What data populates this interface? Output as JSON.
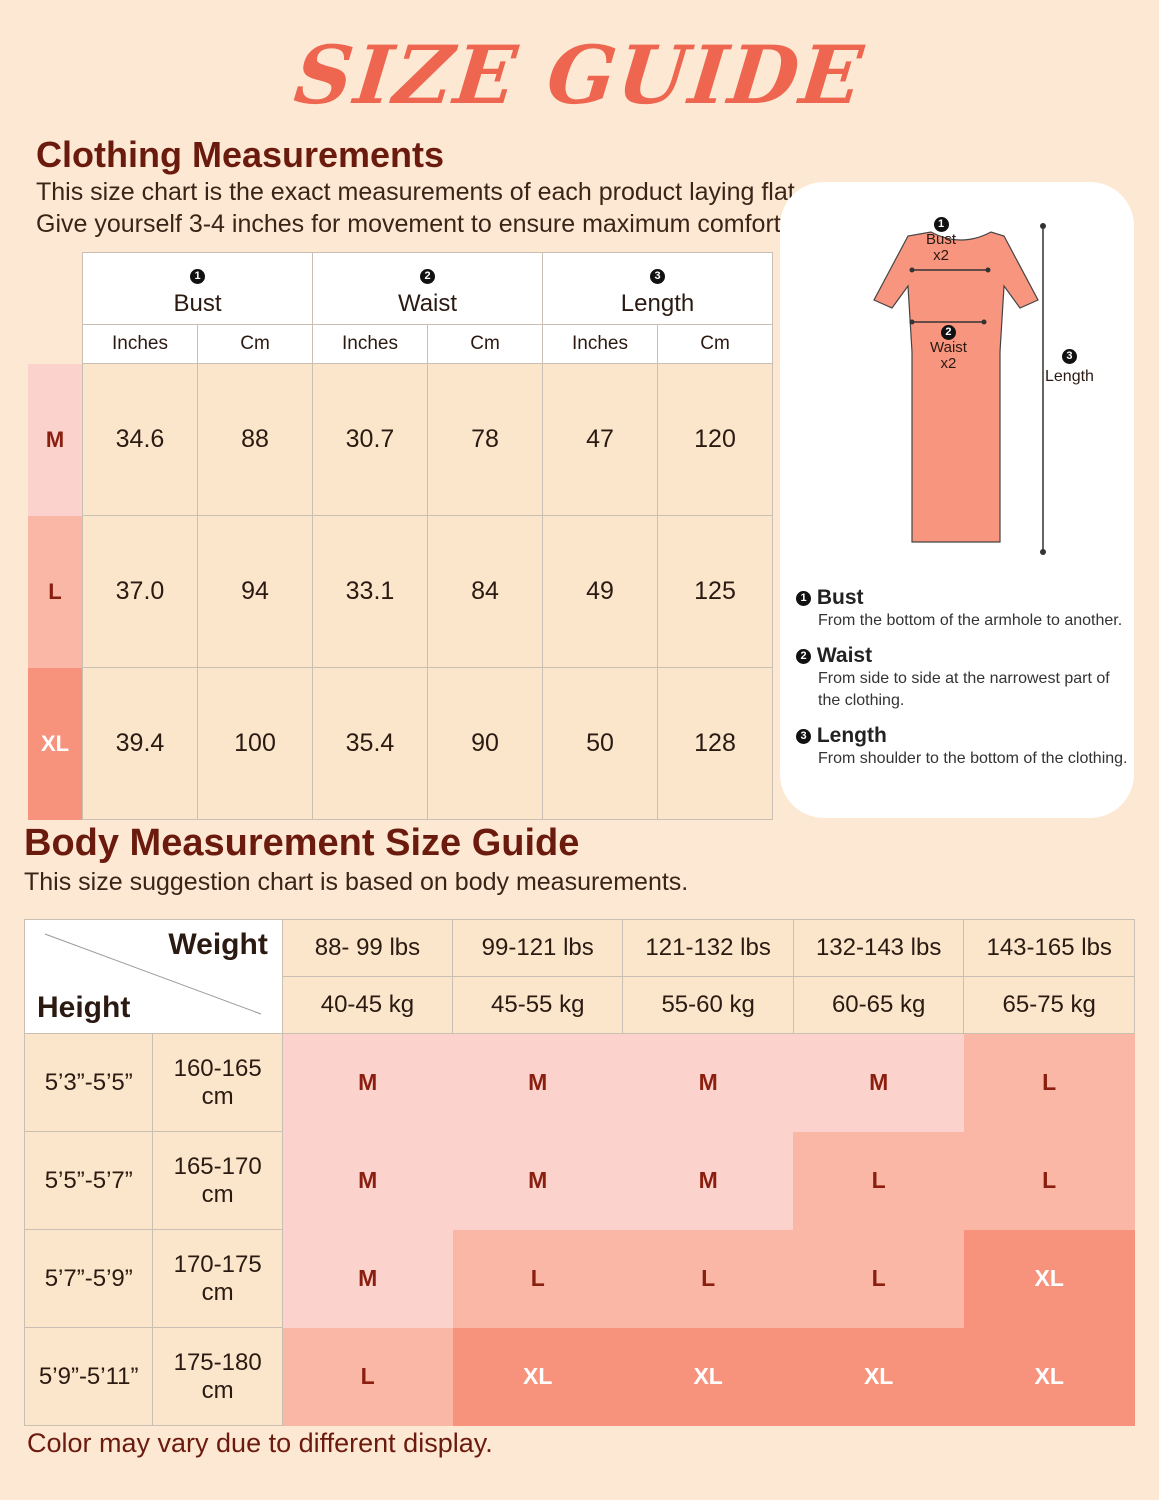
{
  "title": "SIZE GUIDE",
  "clothing": {
    "heading": "Clothing Measurements",
    "desc1": "This size chart is the exact measurements of each product laying flat.",
    "desc2": "Give yourself 3-4 inches for movement to ensure maximum comfort.",
    "columns": [
      {
        "num": "1",
        "label": "Bust"
      },
      {
        "num": "2",
        "label": "Waist"
      },
      {
        "num": "3",
        "label": "Length"
      }
    ],
    "unit_inches": "Inches",
    "unit_cm": "Cm",
    "rows": [
      {
        "size": "M",
        "values": [
          "34.6",
          "88",
          "30.7",
          "78",
          "47",
          "120"
        ]
      },
      {
        "size": "L",
        "values": [
          "37.0",
          "94",
          "33.1",
          "84",
          "49",
          "125"
        ]
      },
      {
        "size": "XL",
        "values": [
          "39.4",
          "100",
          "35.4",
          "90",
          "50",
          "128"
        ]
      }
    ]
  },
  "diagram": {
    "bust_num": "1",
    "bust_label": "Bust",
    "bust_mult": "x2",
    "waist_num": "2",
    "waist_label": "Waist",
    "waist_mult": "x2",
    "length_num": "3",
    "length_label": "Length",
    "dress_color": "#f8957f"
  },
  "definitions": [
    {
      "num": "1",
      "title": "Bust",
      "text": "From the bottom of the armhole to another."
    },
    {
      "num": "2",
      "title": "Waist",
      "text": "From side to side at the narrowest part of the clothing."
    },
    {
      "num": "3",
      "title": "Length",
      "text": "From shoulder to the bottom of the clothing."
    }
  ],
  "body": {
    "heading": "Body Measurement Size Guide",
    "desc": "This size suggestion chart is based on body measurements.",
    "weight_label": "Weight",
    "height_label": "Height",
    "weights_lbs": [
      "88- 99 lbs",
      "99-121 lbs",
      "121-132 lbs",
      "132-143 lbs",
      "143-165 lbs"
    ],
    "weights_kg": [
      "40-45 kg",
      "45-55 kg",
      "55-60 kg",
      "60-65 kg",
      "65-75 kg"
    ],
    "rows": [
      {
        "ft": "5’3”-5’5”",
        "cm": "160-165 cm",
        "sizes": [
          "M",
          "M",
          "M",
          "M",
          "L"
        ]
      },
      {
        "ft": "5’5”-5’7”",
        "cm": "165-170 cm",
        "sizes": [
          "M",
          "M",
          "M",
          "L",
          "L"
        ]
      },
      {
        "ft": "5’7”-5’9”",
        "cm": "170-175 cm",
        "sizes": [
          "M",
          "L",
          "L",
          "L",
          "XL"
        ]
      },
      {
        "ft": "5’9”-5’11”",
        "cm": "175-180 cm",
        "sizes": [
          "L",
          "XL",
          "XL",
          "XL",
          "XL"
        ]
      }
    ]
  },
  "footer": "Color may vary due to different display.",
  "colors": {
    "M": "#fcd3cc",
    "L": "#fbb7a6",
    "XL": "#f7937c",
    "heading": "#6b1a0e",
    "title": "#ee6650"
  }
}
